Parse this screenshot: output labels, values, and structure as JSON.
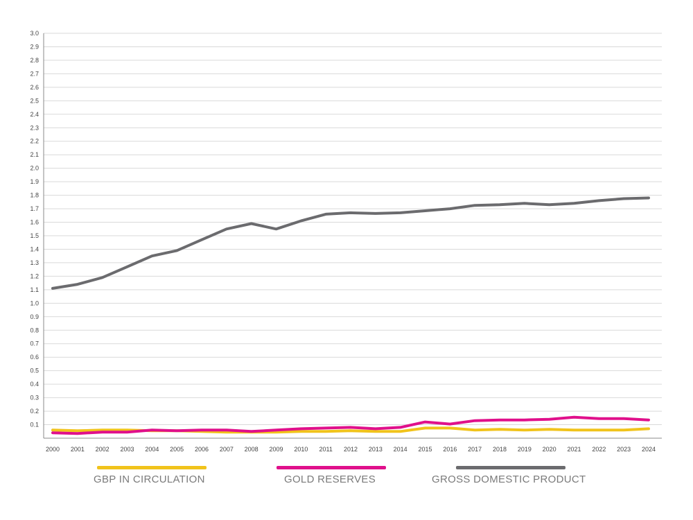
{
  "chart_data": {
    "type": "line",
    "x": [
      "2000",
      "2001",
      "2002",
      "2003",
      "2004",
      "2005",
      "2006",
      "2007",
      "2008",
      "2009",
      "2010",
      "2011",
      "2012",
      "2013",
      "2014",
      "2015",
      "2016",
      "2017",
      "2018",
      "2019",
      "2020",
      "2021",
      "2022",
      "2023",
      "2024"
    ],
    "yticks": [
      "0.1",
      "0.2",
      "0.3",
      "0.4",
      "0.5",
      "0.6",
      "0.7",
      "0.8",
      "0.9",
      "1.0",
      "1.1",
      "1.2",
      "1.3",
      "1.4",
      "1.5",
      "1.6",
      "1.7",
      "1.8",
      "1.9",
      "2.0",
      "2.1",
      "2.2",
      "2.3",
      "2.4",
      "2.5",
      "2.6",
      "2.7",
      "2.8",
      "2.9",
      "3.0"
    ],
    "ylim": [
      0,
      3.0
    ],
    "grid": true,
    "legend_position": "bottom",
    "series": [
      {
        "name": "GBP IN CIRCULATION",
        "color": "#f1c31b",
        "values": [
          0.06,
          0.055,
          0.06,
          0.06,
          0.055,
          0.055,
          0.05,
          0.045,
          0.045,
          0.045,
          0.05,
          0.05,
          0.055,
          0.05,
          0.05,
          0.075,
          0.075,
          0.06,
          0.065,
          0.06,
          0.065,
          0.06,
          0.06,
          0.06,
          0.07
        ]
      },
      {
        "name": "GOLD RESERVES",
        "color": "#e0108b",
        "values": [
          0.04,
          0.035,
          0.045,
          0.045,
          0.06,
          0.055,
          0.06,
          0.06,
          0.05,
          0.06,
          0.07,
          0.075,
          0.08,
          0.07,
          0.08,
          0.12,
          0.105,
          0.13,
          0.135,
          0.135,
          0.14,
          0.155,
          0.145,
          0.145,
          0.135
        ]
      },
      {
        "name": "GROSS DOMESTIC PRODUCT",
        "color": "#6b6b6e",
        "values": [
          1.11,
          1.14,
          1.19,
          1.27,
          1.35,
          1.39,
          1.47,
          1.55,
          1.59,
          1.55,
          1.61,
          1.66,
          1.67,
          1.665,
          1.67,
          1.685,
          1.7,
          1.725,
          1.73,
          1.74,
          1.73,
          1.74,
          1.76,
          1.775,
          1.78
        ]
      }
    ]
  }
}
